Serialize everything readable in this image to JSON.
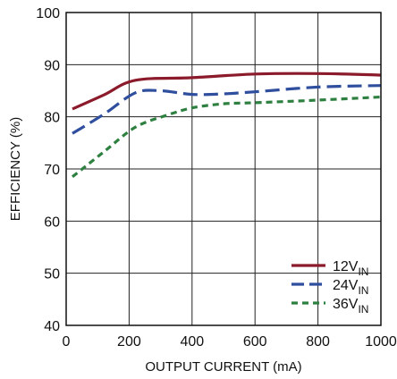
{
  "chart_data": {
    "type": "line",
    "xlabel": "OUTPUT CURRENT (mA)",
    "ylabel": "EFFICIENCY (%)",
    "xlim": [
      0,
      1000
    ],
    "ylim": [
      40,
      100
    ],
    "x_ticks": [
      0,
      200,
      400,
      600,
      800,
      1000
    ],
    "y_ticks": [
      40,
      50,
      60,
      70,
      80,
      90,
      100
    ],
    "grid": true,
    "legend_position": "bottom-right",
    "series": [
      {
        "name_main": "12V",
        "name_sub": "IN",
        "color": "#8b1a2b",
        "dash": "solid",
        "points": [
          [
            20,
            81.5
          ],
          [
            120,
            84.2
          ],
          [
            220,
            87.0
          ],
          [
            400,
            87.5
          ],
          [
            600,
            88.2
          ],
          [
            800,
            88.3
          ],
          [
            1000,
            88.0
          ]
        ]
      },
      {
        "name_main": "24V",
        "name_sub": "IN",
        "color": "#2f4f9e",
        "dash": "long-dash",
        "points": [
          [
            20,
            76.8
          ],
          [
            120,
            80.5
          ],
          [
            220,
            84.6
          ],
          [
            300,
            85.0
          ],
          [
            400,
            84.3
          ],
          [
            500,
            84.4
          ],
          [
            600,
            84.8
          ],
          [
            800,
            85.7
          ],
          [
            1000,
            86.0
          ]
        ]
      },
      {
        "name_main": "36V",
        "name_sub": "IN",
        "color": "#2e8040",
        "dash": "short-dash",
        "points": [
          [
            20,
            68.5
          ],
          [
            120,
            73.3
          ],
          [
            220,
            78.0
          ],
          [
            320,
            80.3
          ],
          [
            400,
            81.7
          ],
          [
            500,
            82.5
          ],
          [
            600,
            82.7
          ],
          [
            800,
            83.2
          ],
          [
            1000,
            83.8
          ]
        ]
      }
    ]
  }
}
